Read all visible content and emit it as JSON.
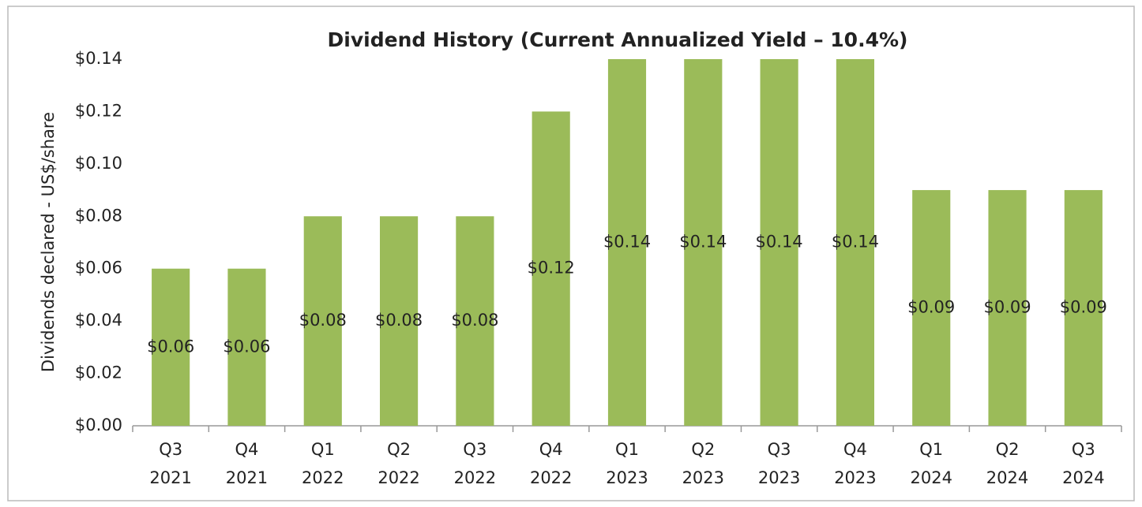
{
  "chart_data": {
    "type": "bar",
    "title": "Dividend History (Current Annualized Yield – 10.4%)",
    "y_label": "Dividends declared - US$/share",
    "categories": [
      "Q3\n2021",
      "Q4\n2021",
      "Q1\n2022",
      "Q2\n2022",
      "Q3\n2022",
      "Q4\n2022",
      "Q1\n2023",
      "Q2\n2023",
      "Q3\n2023",
      "Q4\n2023",
      "Q1\n2024",
      "Q2\n2024",
      "Q3\n2024"
    ],
    "values": [
      0.06,
      0.06,
      0.08,
      0.08,
      0.08,
      0.12,
      0.14,
      0.14,
      0.14,
      0.14,
      0.09,
      0.09,
      0.09
    ],
    "value_labels": [
      "$0.06",
      "$0.06",
      "$0.08",
      "$0.08",
      "$0.08",
      "$0.12",
      "$0.14",
      "$0.14",
      "$0.14",
      "$0.14",
      "$0.09",
      "$0.09",
      "$0.09"
    ],
    "color": "#9bbb59",
    "ylim": [
      0,
      0.14
    ],
    "yticks": [
      {
        "value": 0,
        "label": "$0.00"
      },
      {
        "value": 0.02,
        "label": "$0.02"
      },
      {
        "value": 0.04,
        "label": "$0.04"
      },
      {
        "value": 0.06,
        "label": "$0.06"
      },
      {
        "value": 0.08,
        "label": "$0.08"
      },
      {
        "value": 0.1,
        "label": "$0.10"
      },
      {
        "value": 0.12,
        "label": "$0.12"
      },
      {
        "value": 0.14,
        "label": "$0.14"
      }
    ],
    "grid": false
  }
}
